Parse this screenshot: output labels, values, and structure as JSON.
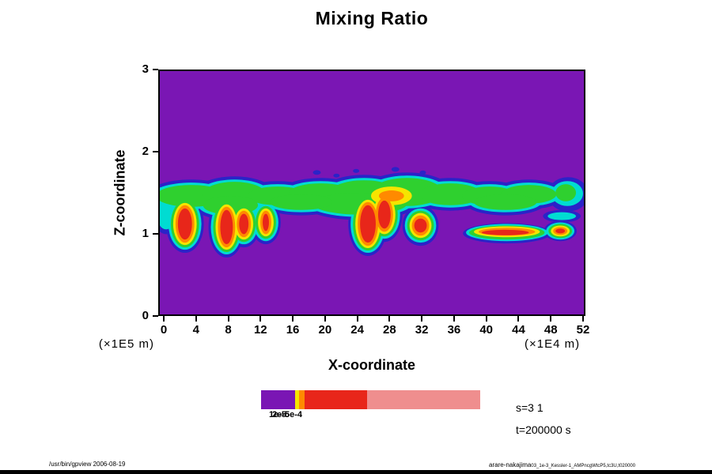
{
  "title": "Mixing Ratio",
  "axes": {
    "x": {
      "label": "X-coordinate",
      "unit": "(×1E4 m)",
      "ticks": [
        "0",
        "4",
        "8",
        "12",
        "16",
        "20",
        "24",
        "28",
        "32",
        "36",
        "40",
        "44",
        "48",
        "52"
      ]
    },
    "y": {
      "label": "Z-coordinate",
      "unit": "(×1E5 m)",
      "ticks": [
        "3",
        "2",
        "1",
        "0"
      ]
    }
  },
  "colorbar": {
    "segments": [
      {
        "color": "#7a16b4",
        "pct": 15.5
      },
      {
        "color": "#f6e400",
        "pct": 2.0
      },
      {
        "color": "#ff8a00",
        "pct": 2.5
      },
      {
        "color": "#e8261a",
        "pct": 28.5
      },
      {
        "color": "#ef8e8e",
        "pct": 51.5
      }
    ],
    "labels": [
      {
        "text": "1e-5",
        "x": 10
      },
      {
        "text": "2e-5",
        "x": 14
      },
      {
        "text": "5e-4",
        "x": 30
      }
    ]
  },
  "annotations": {
    "slice": "s=3 1",
    "time": "t=200000 s"
  },
  "footer": {
    "left": "/usr/bin/gpview 2006-08-19",
    "right_main": "arare-nakajima",
    "right_sub": "03_1e-3_Kessler-1_AMPncgWtcP5,tc3U,t020000"
  },
  "palette": {
    "background_purple": "#7a16b4",
    "level_blue": "#2a23c8",
    "level_cyan": "#00dcd2",
    "level_green": "#2fd02f",
    "level_yellow": "#f6e400",
    "level_orange": "#ff8a00",
    "level_red": "#e8261a",
    "level_pink": "#ef8e8e"
  },
  "chart_data": {
    "type": "heatmap",
    "title": "Mixing Ratio",
    "xlabel": "X-coordinate (×1E4 m)",
    "ylabel": "Z-coordinate (×1E5 m)",
    "xlim": [
      0,
      52
    ],
    "ylim": [
      0,
      3
    ],
    "x_ticks": [
      0,
      4,
      8,
      12,
      16,
      20,
      24,
      28,
      32,
      36,
      40,
      44,
      48,
      52
    ],
    "y_ticks": [
      0,
      1,
      2,
      3
    ],
    "time_annotation": "t=200000 s",
    "slice_annotation": "s=3 1",
    "colorbar_tick_labels": [
      "1e-5",
      "2e-5",
      "5e-4"
    ],
    "colorbar_colors_low_to_high": [
      "#7a16b4",
      "#f6e400",
      "#ff8a00",
      "#e8261a",
      "#ef8e8e"
    ],
    "field_description": "Filled contour field of cloud mixing ratio: uniform purple (near-zero) background with a turbulent cloud band.",
    "features": [
      {
        "name": "main-cloud-band",
        "x_range": [
          0,
          52
        ],
        "z_range": [
          1.2,
          1.7
        ],
        "levels": "blue rim, cyan, green interior"
      },
      {
        "name": "convective-cores",
        "x_centers_approx": [
          2.5,
          8,
          10.5,
          13,
          25.5,
          27.5,
          32
        ],
        "z_range": [
          0.85,
          1.5
        ],
        "levels": "yellow/orange/red maxima hanging below band"
      },
      {
        "name": "upper-band-maximum",
        "x_range": [
          26,
          31
        ],
        "z_range": [
          1.3,
          1.6
        ],
        "levels": "yellow/orange patch inside band"
      },
      {
        "name": "low-level-streak",
        "x_range": [
          38,
          48
        ],
        "z_range": [
          0.85,
          1.05
        ],
        "levels": "flat orange/red streak with green rim"
      },
      {
        "name": "right-edge-hook",
        "x_range": [
          48,
          52
        ],
        "z_range": [
          1.3,
          1.7
        ],
        "levels": "blue/cyan swirl at right boundary"
      }
    ]
  }
}
